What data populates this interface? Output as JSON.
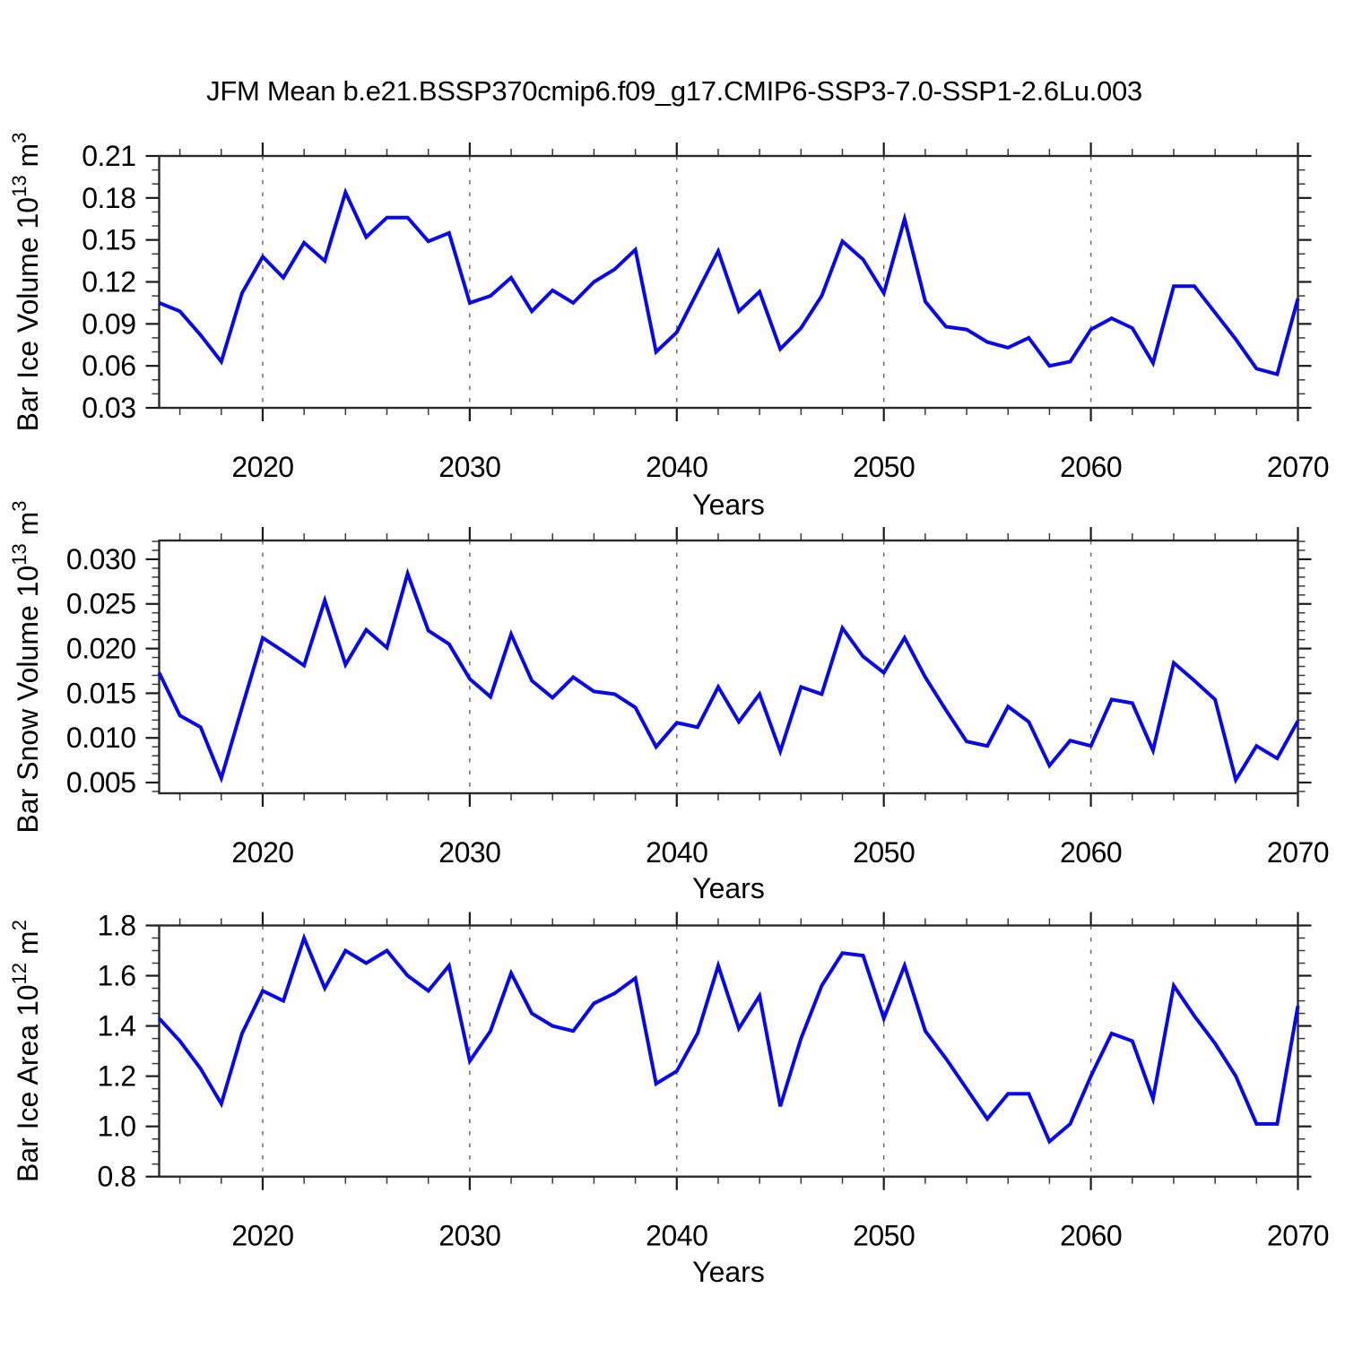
{
  "title": "JFM Mean b.e21.BSSP370cmip6.f09_g17.CMIP6-SSP3-7.0-SSP1-2.6Lu.003",
  "colors": {
    "line": "#0808F0",
    "grid": "#646464",
    "frame": "#2A2A2A",
    "tick_major": "#1A1A1A",
    "tick_minor": "#3A3A3A",
    "text": "#000000",
    "background": "#FFFFFF"
  },
  "x_axis": {
    "label": "Years",
    "range": [
      2015,
      2070
    ],
    "major_ticks": [
      2020,
      2030,
      2040,
      2050,
      2060,
      2070
    ],
    "tick_labels": [
      "2020",
      "2030",
      "2040",
      "2050",
      "2060",
      "2070"
    ],
    "minor_step": 2,
    "gridlines": [
      2020,
      2030,
      2040,
      2050,
      2060
    ]
  },
  "years": [
    2015,
    2016,
    2017,
    2018,
    2019,
    2020,
    2021,
    2022,
    2023,
    2024,
    2025,
    2026,
    2027,
    2028,
    2029,
    2030,
    2031,
    2032,
    2033,
    2034,
    2035,
    2036,
    2037,
    2038,
    2039,
    2040,
    2041,
    2042,
    2043,
    2044,
    2045,
    2046,
    2047,
    2048,
    2049,
    2050,
    2051,
    2052,
    2053,
    2054,
    2055,
    2056,
    2057,
    2058,
    2059,
    2060,
    2061,
    2062,
    2063,
    2064,
    2065,
    2066,
    2067,
    2068,
    2069,
    2070
  ],
  "chart_data": [
    {
      "type": "line",
      "id": "bar-ice-volume",
      "ylabel": "Bar Ice Volume 10^13 m^3",
      "ylabel_rich": [
        {
          "t": "Bar Ice Volume 10"
        },
        {
          "sup": "13"
        },
        {
          "t": " m"
        },
        {
          "sup": "3"
        }
      ],
      "xlabel": "Years",
      "ylim": [
        0.03,
        0.21
      ],
      "yticks": [
        0.03,
        0.06,
        0.09,
        0.12,
        0.15,
        0.18,
        0.21
      ],
      "ytick_labels": [
        "0.03",
        "0.06",
        "0.09",
        "0.12",
        "0.15",
        "0.18",
        "0.21"
      ],
      "yminor_step": 0.01,
      "values": [
        0.105,
        0.099,
        0.082,
        0.063,
        0.112,
        0.138,
        0.123,
        0.148,
        0.135,
        0.184,
        0.152,
        0.166,
        0.166,
        0.149,
        0.155,
        0.105,
        0.11,
        0.123,
        0.099,
        0.114,
        0.105,
        0.12,
        0.129,
        0.143,
        0.07,
        0.084,
        0.113,
        0.142,
        0.099,
        0.113,
        0.072,
        0.087,
        0.11,
        0.149,
        0.136,
        0.112,
        0.165,
        0.106,
        0.088,
        0.086,
        0.077,
        0.073,
        0.08,
        0.06,
        0.063,
        0.086,
        0.094,
        0.087,
        0.062,
        0.117,
        0.117,
        0.098,
        0.079,
        0.058,
        0.054,
        0.108
      ]
    },
    {
      "type": "line",
      "id": "bar-snow-volume",
      "ylabel": "Bar Snow Volume 10^13 m^3",
      "ylabel_rich": [
        {
          "t": "Bar Snow Volume 10"
        },
        {
          "sup": "13"
        },
        {
          "t": " m"
        },
        {
          "sup": "3"
        }
      ],
      "xlabel": "Years",
      "ylim": [
        0.0038,
        0.0321
      ],
      "yticks": [
        0.005,
        0.01,
        0.015,
        0.02,
        0.025,
        0.03
      ],
      "ytick_labels": [
        "0.005",
        "0.010",
        "0.015",
        "0.020",
        "0.025",
        "0.030"
      ],
      "yminor_step": 0.001,
      "values": [
        0.0173,
        0.0125,
        0.0112,
        0.0055,
        0.0134,
        0.0212,
        0.0197,
        0.0181,
        0.0254,
        0.0182,
        0.0221,
        0.0201,
        0.0284,
        0.022,
        0.0205,
        0.0166,
        0.0146,
        0.0216,
        0.0164,
        0.0145,
        0.0168,
        0.0152,
        0.0149,
        0.0134,
        0.009,
        0.0117,
        0.0112,
        0.0157,
        0.0118,
        0.0149,
        0.0085,
        0.0157,
        0.0149,
        0.0223,
        0.0191,
        0.0173,
        0.0212,
        0.0168,
        0.0131,
        0.0096,
        0.0091,
        0.0135,
        0.0118,
        0.0069,
        0.0097,
        0.0091,
        0.0143,
        0.0139,
        0.0086,
        0.0184,
        0.0164,
        0.0143,
        0.0053,
        0.0091,
        0.0077,
        0.0119
      ]
    },
    {
      "type": "line",
      "id": "bar-ice-area",
      "ylabel": "Bar Ice Area 10^12 m^2",
      "ylabel_rich": [
        {
          "t": "Bar Ice Area 10"
        },
        {
          "sup": "12"
        },
        {
          "t": " m"
        },
        {
          "sup": "2"
        }
      ],
      "xlabel": "Years",
      "ylim": [
        0.8,
        1.8
      ],
      "yticks": [
        0.8,
        1.0,
        1.2,
        1.4,
        1.6,
        1.8
      ],
      "ytick_labels": [
        "0.8",
        "1.0",
        "1.2",
        "1.4",
        "1.6",
        "1.8"
      ],
      "yminor_step": 0.05,
      "values": [
        1.43,
        1.34,
        1.23,
        1.09,
        1.37,
        1.54,
        1.5,
        1.75,
        1.55,
        1.7,
        1.65,
        1.7,
        1.6,
        1.54,
        1.64,
        1.26,
        1.38,
        1.61,
        1.45,
        1.4,
        1.38,
        1.49,
        1.53,
        1.59,
        1.17,
        1.22,
        1.37,
        1.64,
        1.39,
        1.52,
        1.08,
        1.35,
        1.56,
        1.69,
        1.68,
        1.43,
        1.64,
        1.38,
        1.27,
        1.15,
        1.03,
        1.13,
        1.13,
        0.94,
        1.01,
        1.2,
        1.37,
        1.34,
        1.11,
        1.56,
        1.44,
        1.33,
        1.2,
        1.01,
        1.01,
        1.48
      ]
    }
  ]
}
